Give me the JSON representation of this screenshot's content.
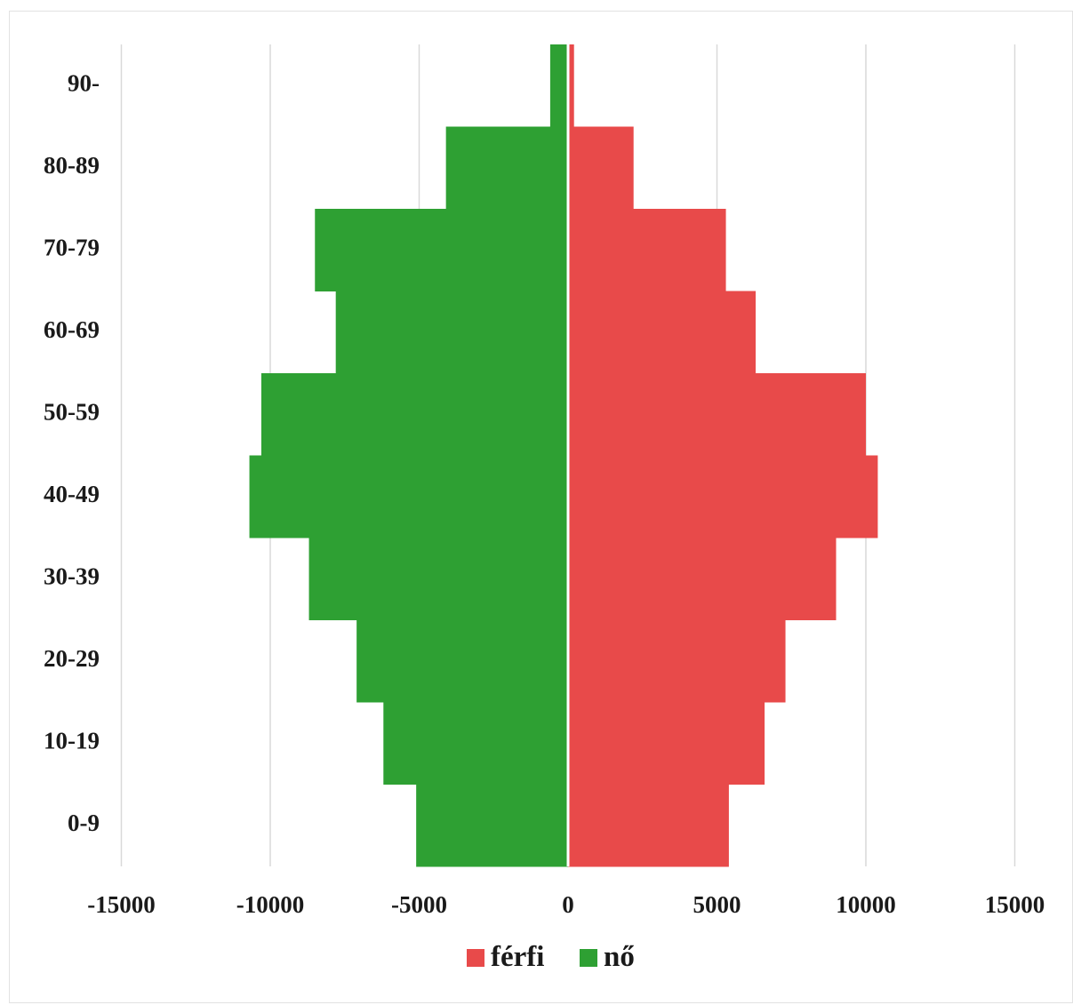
{
  "chart_data": {
    "type": "bar",
    "orientation": "horizontal",
    "subtype": "population-pyramid",
    "categories": [
      "0-9",
      "10-19",
      "20-29",
      "30-39",
      "40-49",
      "50-59",
      "60-69",
      "70-79",
      "80-89",
      "90-"
    ],
    "series": [
      {
        "name": "férfi",
        "color": "#e84a4a",
        "values": [
          5400,
          6600,
          7300,
          9000,
          10400,
          10000,
          6300,
          5300,
          2200,
          200
        ]
      },
      {
        "name": "nő",
        "color": "#2ea033",
        "values": [
          -5100,
          -6200,
          -7100,
          -8700,
          -10700,
          -10300,
          -7800,
          -8500,
          -4100,
          -600
        ]
      }
    ],
    "x_ticks": [
      "-15000",
      "-10000",
      "-5000",
      "0",
      "5000",
      "10000",
      "15000"
    ],
    "xlim": [
      -15000,
      15000
    ],
    "grid": "vertical",
    "legend_position": "bottom",
    "title": "",
    "xlabel": "",
    "ylabel": ""
  }
}
